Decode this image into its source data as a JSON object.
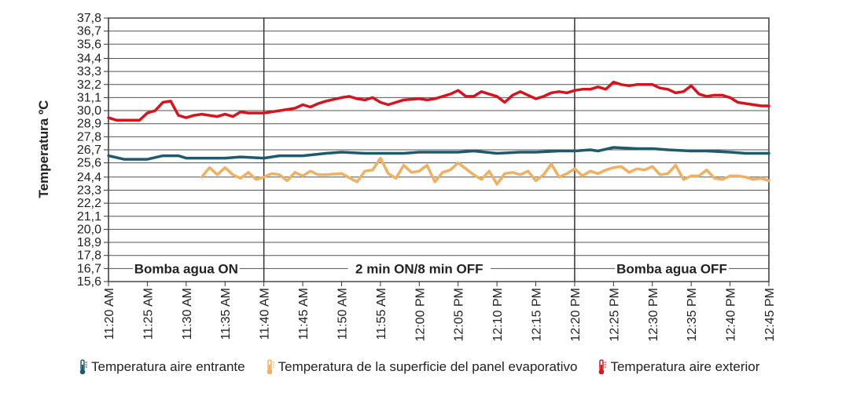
{
  "chart_data": {
    "type": "line",
    "ylabel": "Temperatura ºC",
    "xlabel": "",
    "y_ticks": [
      "15,6",
      "16,7",
      "17,8",
      "18,9",
      "20,0",
      "21,1",
      "22,2",
      "23,3",
      "24,4",
      "25,6",
      "26,7",
      "27,8",
      "28,9",
      "30,0",
      "31,1",
      "32,2",
      "33,3",
      "34,4",
      "35,6",
      "36,7",
      "37,8"
    ],
    "ylim": [
      15.6,
      37.8
    ],
    "x_ticks": [
      "11:20 AM",
      "11:25 AM",
      "11:30 AM",
      "11:35 AM",
      "11:40 AM",
      "11:45 AM",
      "11:50 AM",
      "11:55 AM",
      "12:00 PM",
      "12:05 PM",
      "12:10 PM",
      "12:15 PM",
      "12:20 PM",
      "12:25 PM",
      "12:30 PM",
      "12:35 PM",
      "12:40 PM",
      "12:45 PM"
    ],
    "grid": true,
    "legend_position": "bottom",
    "phases": [
      {
        "label": "Bomba agua ON",
        "start": "11:20 AM",
        "end": "11:40 AM"
      },
      {
        "label": "2 min ON/8 min OFF",
        "start": "11:40 AM",
        "end": "12:20 PM"
      },
      {
        "label": "Bomba agua OFF",
        "start": "12:20 PM",
        "end": "12:45 PM"
      }
    ],
    "series": [
      {
        "name": "Temperatura aire entrante",
        "color": "#1e5a6e",
        "icon": "thermometer-icon",
        "x": [
          "11:20 AM",
          "11:22 AM",
          "11:25 AM",
          "11:27 AM",
          "11:29 AM",
          "11:30 AM",
          "11:35 AM",
          "11:37 AM",
          "11:40 AM",
          "11:42 AM",
          "11:45 AM",
          "11:48 AM",
          "11:50 AM",
          "11:53 AM",
          "11:55 AM",
          "11:58 AM",
          "12:00 PM",
          "12:03 PM",
          "12:05 PM",
          "12:07 PM",
          "12:10 PM",
          "12:13 PM",
          "12:15 PM",
          "12:18 PM",
          "12:20 PM",
          "12:22 PM",
          "12:23 PM",
          "12:25 PM",
          "12:28 PM",
          "12:30 PM",
          "12:32 PM",
          "12:35 PM",
          "12:37 PM",
          "12:40 PM",
          "12:42 PM",
          "12:45 PM"
        ],
        "y": [
          26.2,
          25.9,
          25.9,
          26.2,
          26.2,
          26.0,
          26.0,
          26.1,
          26.0,
          26.2,
          26.2,
          26.4,
          26.5,
          26.4,
          26.4,
          26.4,
          26.5,
          26.5,
          26.5,
          26.6,
          26.4,
          26.5,
          26.5,
          26.6,
          26.6,
          26.7,
          26.6,
          26.9,
          26.8,
          26.8,
          26.7,
          26.6,
          26.6,
          26.5,
          26.4,
          26.4
        ]
      },
      {
        "name": "Temperatura de la superficie del panel evaporativo",
        "color": "#f0b060",
        "icon": "thermometer-icon",
        "x": [
          "11:32 AM",
          "11:33 AM",
          "11:34 AM",
          "11:35 AM",
          "11:36 AM",
          "11:37 AM",
          "11:38 AM",
          "11:39 AM",
          "11:40 AM",
          "11:41 AM",
          "11:42 AM",
          "11:43 AM",
          "11:44 AM",
          "11:45 AM",
          "11:46 AM",
          "11:47 AM",
          "11:48 AM",
          "11:50 AM",
          "11:52 AM",
          "11:53 AM",
          "11:54 AM",
          "11:55 AM",
          "11:56 AM",
          "11:57 AM",
          "11:58 AM",
          "11:59 AM",
          "12:00 PM",
          "12:01 PM",
          "12:02 PM",
          "12:03 PM",
          "12:04 PM",
          "12:05 PM",
          "12:06 PM",
          "12:07 PM",
          "12:08 PM",
          "12:09 PM",
          "12:10 PM",
          "12:11 PM",
          "12:12 PM",
          "12:13 PM",
          "12:14 PM",
          "12:15 PM",
          "12:16 PM",
          "12:17 PM",
          "12:18 PM",
          "12:19 PM",
          "12:20 PM",
          "12:21 PM",
          "12:22 PM",
          "12:23 PM",
          "12:24 PM",
          "12:25 PM",
          "12:26 PM",
          "12:27 PM",
          "12:28 PM",
          "12:29 PM",
          "12:30 PM",
          "12:31 PM",
          "12:32 PM",
          "12:33 PM",
          "12:34 PM",
          "12:35 PM",
          "12:36 PM",
          "12:37 PM",
          "12:38 PM",
          "12:39 PM",
          "12:40 PM",
          "12:41 PM",
          "12:42 PM",
          "12:43 PM",
          "12:44 PM",
          "12:45 PM"
        ],
        "y": [
          24.4,
          25.2,
          24.6,
          25.2,
          24.6,
          24.3,
          24.8,
          24.2,
          24.4,
          24.7,
          24.6,
          24.1,
          24.8,
          24.5,
          24.9,
          24.6,
          24.6,
          24.7,
          24.0,
          24.9,
          25.0,
          26.0,
          24.7,
          24.3,
          25.4,
          24.8,
          24.9,
          25.4,
          24.0,
          24.8,
          25.0,
          25.6,
          25.1,
          24.6,
          24.2,
          24.9,
          23.8,
          24.7,
          24.8,
          24.6,
          24.9,
          24.1,
          24.6,
          25.5,
          24.4,
          24.7,
          25.1,
          24.5,
          24.9,
          24.7,
          25.0,
          25.2,
          25.3,
          24.8,
          25.1,
          25.0,
          25.3,
          24.6,
          24.7,
          25.4,
          24.2,
          24.5,
          24.5,
          25.0,
          24.3,
          24.2,
          24.5,
          24.5,
          24.4,
          24.2,
          24.3,
          24.1
        ]
      },
      {
        "name": "Temperatura aire exterior",
        "color": "#d7141e",
        "icon": "thermometer-icon",
        "x": [
          "11:20 AM",
          "11:21 AM",
          "11:23 AM",
          "11:24 AM",
          "11:25 AM",
          "11:26 AM",
          "11:27 AM",
          "11:28 AM",
          "11:29 AM",
          "11:30 AM",
          "11:31 AM",
          "11:32 AM",
          "11:34 AM",
          "11:35 AM",
          "11:36 AM",
          "11:37 AM",
          "11:38 AM",
          "11:40 AM",
          "11:41 AM",
          "11:42 AM",
          "11:44 AM",
          "11:45 AM",
          "11:46 AM",
          "11:47 AM",
          "11:48 AM",
          "11:50 AM",
          "11:51 AM",
          "11:52 AM",
          "11:53 AM",
          "11:54 AM",
          "11:55 AM",
          "11:56 AM",
          "11:58 AM",
          "12:00 PM",
          "12:01 PM",
          "12:02 PM",
          "12:03 PM",
          "12:04 PM",
          "12:05 PM",
          "12:06 PM",
          "12:07 PM",
          "12:08 PM",
          "12:09 PM",
          "12:10 PM",
          "12:11 PM",
          "12:12 PM",
          "12:13 PM",
          "12:14 PM",
          "12:15 PM",
          "12:16 PM",
          "12:17 PM",
          "12:18 PM",
          "12:19 PM",
          "12:20 PM",
          "12:21 PM",
          "12:22 PM",
          "12:23 PM",
          "12:24 PM",
          "12:25 PM",
          "12:26 PM",
          "12:27 PM",
          "12:28 PM",
          "12:29 PM",
          "12:30 PM",
          "12:31 PM",
          "12:32 PM",
          "12:33 PM",
          "12:34 PM",
          "12:35 PM",
          "12:36 PM",
          "12:37 PM",
          "12:38 PM",
          "12:39 PM",
          "12:40 PM",
          "12:41 PM",
          "12:42 PM",
          "12:43 PM",
          "12:44 PM",
          "12:45 PM"
        ],
        "y": [
          29.4,
          29.2,
          29.2,
          29.2,
          29.8,
          30.0,
          30.7,
          30.8,
          29.6,
          29.4,
          29.6,
          29.7,
          29.5,
          29.7,
          29.5,
          29.9,
          29.8,
          29.8,
          29.9,
          30.0,
          30.2,
          30.5,
          30.3,
          30.6,
          30.8,
          31.1,
          31.2,
          31.0,
          30.9,
          31.1,
          30.7,
          30.5,
          30.9,
          31.0,
          30.9,
          31.0,
          31.2,
          31.4,
          31.7,
          31.2,
          31.2,
          31.6,
          31.4,
          31.2,
          30.7,
          31.3,
          31.6,
          31.3,
          31.0,
          31.2,
          31.5,
          31.6,
          31.5,
          31.7,
          31.8,
          31.8,
          32.0,
          31.8,
          32.4,
          32.2,
          32.1,
          32.2,
          32.2,
          32.2,
          31.9,
          31.8,
          31.5,
          31.6,
          32.1,
          31.4,
          31.2,
          31.3,
          31.3,
          31.1,
          30.7,
          30.6,
          30.5,
          30.4,
          30.4
        ]
      }
    ]
  }
}
